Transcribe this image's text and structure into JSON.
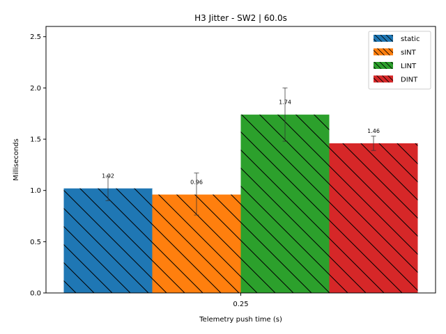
{
  "chart_data": {
    "type": "bar",
    "title": "H3 Jitter - SW2 | 60.0s",
    "xlabel": "Telemetry push time (s)",
    "ylabel": "Milliseconds",
    "categories": [
      "0.25"
    ],
    "ylim": [
      0,
      2.6
    ],
    "yticks": [
      0.0,
      0.5,
      1.0,
      1.5,
      2.0,
      2.5
    ],
    "ytick_labels": [
      "0.0",
      "0.5",
      "1.0",
      "1.5",
      "2.0",
      "2.5"
    ],
    "grid": false,
    "legend_position": "top-right",
    "hatch": "diagonal",
    "series": [
      {
        "name": "static",
        "values": [
          1.02
        ],
        "error": [
          [
            0.9,
            1.14
          ]
        ],
        "label": "1.02",
        "color": "#1f77b4"
      },
      {
        "name": "sINT",
        "values": [
          0.96
        ],
        "error": [
          [
            0.76,
            1.17
          ]
        ],
        "label": "0.96",
        "color": "#ff7f0e"
      },
      {
        "name": "LINT",
        "values": [
          1.74
        ],
        "error": [
          [
            1.48,
            2.0
          ]
        ],
        "label": "1.74",
        "color": "#2ca02c"
      },
      {
        "name": "DINT",
        "values": [
          1.46
        ],
        "error": [
          [
            1.39,
            1.53
          ]
        ],
        "label": "1.46",
        "color": "#d62728"
      }
    ]
  }
}
